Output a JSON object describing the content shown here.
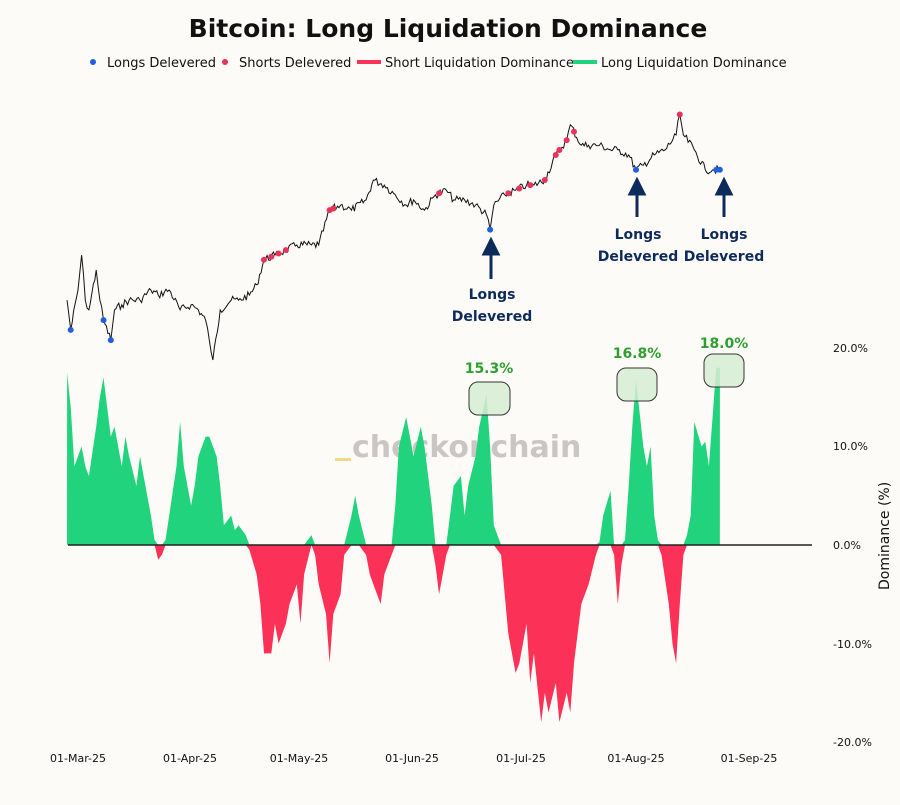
{
  "chart_data": {
    "type": "area",
    "title": "Bitcoin: Long Liquidation Dominance",
    "ylabel": "Dominance (%)",
    "ylim": [
      -20,
      20
    ],
    "y_ticks": [
      "20.0%",
      "10.0%",
      "0.0%",
      "-10.0%",
      "-20.0%"
    ],
    "y_tick_values": [
      20,
      10,
      0,
      -10,
      -20
    ],
    "x_ticks": [
      "01-Mar-25",
      "01-Apr-25",
      "01-May-25",
      "01-Jun-25",
      "01-Jul-25",
      "01-Aug-25",
      "01-Sep-25"
    ],
    "x_tick_dates": [
      "2025-03-01",
      "2025-04-01",
      "2025-05-01",
      "2025-06-01",
      "2025-07-01",
      "2025-08-01",
      "2025-09-01"
    ],
    "grid": false,
    "legend_position": "top",
    "legend": [
      {
        "label": "Longs Delevered",
        "kind": "dot",
        "color": "#1f5fe0"
      },
      {
        "label": "Shorts Delevered",
        "kind": "dot",
        "color": "#e8335a"
      },
      {
        "label": "Short Liquidation Dominance",
        "kind": "area",
        "color": "#fb3157"
      },
      {
        "label": "Long Liquidation Dominance",
        "kind": "area",
        "color": "#22d37e"
      }
    ],
    "watermark": "checkonchain",
    "dominance": [
      [
        "2025-02-26",
        17.5
      ],
      [
        "2025-02-27",
        14
      ],
      [
        "2025-02-28",
        8
      ],
      [
        "2025-03-02",
        10
      ],
      [
        "2025-03-03",
        8
      ],
      [
        "2025-03-04",
        7
      ],
      [
        "2025-03-06",
        12
      ],
      [
        "2025-03-07",
        15
      ],
      [
        "2025-03-08",
        17
      ],
      [
        "2025-03-10",
        11
      ],
      [
        "2025-03-11",
        12
      ],
      [
        "2025-03-13",
        8
      ],
      [
        "2025-03-14",
        11
      ],
      [
        "2025-03-15",
        9
      ],
      [
        "2025-03-17",
        6
      ],
      [
        "2025-03-18",
        9
      ],
      [
        "2025-03-19",
        7
      ],
      [
        "2025-03-21",
        3
      ],
      [
        "2025-03-22",
        0.5
      ],
      [
        "2025-03-23",
        -1.5
      ],
      [
        "2025-03-24",
        -1
      ],
      [
        "2025-03-25",
        0.5
      ],
      [
        "2025-03-26",
        3
      ],
      [
        "2025-03-28",
        8
      ],
      [
        "2025-03-29",
        12.5
      ],
      [
        "2025-03-30",
        8
      ],
      [
        "2025-04-01",
        4
      ],
      [
        "2025-04-02",
        6
      ],
      [
        "2025-04-03",
        9
      ],
      [
        "2025-04-05",
        11
      ],
      [
        "2025-04-06",
        11
      ],
      [
        "2025-04-08",
        9
      ],
      [
        "2025-04-09",
        6
      ],
      [
        "2025-04-10",
        2
      ],
      [
        "2025-04-12",
        3
      ],
      [
        "2025-04-13",
        1.5
      ],
      [
        "2025-04-14",
        2
      ],
      [
        "2025-04-16",
        1
      ],
      [
        "2025-04-17",
        -0.5
      ],
      [
        "2025-04-19",
        -3
      ],
      [
        "2025-04-20",
        -6
      ],
      [
        "2025-04-21",
        -11
      ],
      [
        "2025-04-23",
        -11
      ],
      [
        "2025-04-24",
        -8
      ],
      [
        "2025-04-25",
        -10
      ],
      [
        "2025-04-27",
        -8
      ],
      [
        "2025-04-28",
        -6
      ],
      [
        "2025-04-30",
        -4
      ],
      [
        "2025-05-01",
        -8
      ],
      [
        "2025-05-02",
        -3
      ],
      [
        "2025-05-04",
        1
      ],
      [
        "2025-05-05",
        -1
      ],
      [
        "2025-05-06",
        -4
      ],
      [
        "2025-05-08",
        -7
      ],
      [
        "2025-05-09",
        -12
      ],
      [
        "2025-05-10",
        -7
      ],
      [
        "2025-05-12",
        -5
      ],
      [
        "2025-05-13",
        -1
      ],
      [
        "2025-05-15",
        3
      ],
      [
        "2025-05-16",
        5
      ],
      [
        "2025-05-17",
        3
      ],
      [
        "2025-05-19",
        -1
      ],
      [
        "2025-05-20",
        -3
      ],
      [
        "2025-05-21",
        -4
      ],
      [
        "2025-05-23",
        -6
      ],
      [
        "2025-05-24",
        -3
      ],
      [
        "2025-05-26",
        -1
      ],
      [
        "2025-05-27",
        4
      ],
      [
        "2025-05-28",
        10
      ],
      [
        "2025-05-30",
        13
      ],
      [
        "2025-05-31",
        11
      ],
      [
        "2025-06-01",
        9
      ],
      [
        "2025-06-03",
        12
      ],
      [
        "2025-06-04",
        10
      ],
      [
        "2025-06-06",
        4
      ],
      [
        "2025-06-07",
        -2
      ],
      [
        "2025-06-08",
        -5
      ],
      [
        "2025-06-10",
        -1
      ],
      [
        "2025-06-11",
        3
      ],
      [
        "2025-06-12",
        6
      ],
      [
        "2025-06-14",
        7
      ],
      [
        "2025-06-15",
        3
      ],
      [
        "2025-06-16",
        6
      ],
      [
        "2025-06-18",
        9
      ],
      [
        "2025-06-19",
        12
      ],
      [
        "2025-06-21",
        15.3
      ],
      [
        "2025-06-22",
        10
      ],
      [
        "2025-06-23",
        2
      ],
      [
        "2025-06-25",
        -1
      ],
      [
        "2025-06-26",
        -5
      ],
      [
        "2025-06-27",
        -9
      ],
      [
        "2025-06-29",
        -13
      ],
      [
        "2025-06-30",
        -12
      ],
      [
        "2025-07-02",
        -8
      ],
      [
        "2025-07-03",
        -14
      ],
      [
        "2025-07-04",
        -11
      ],
      [
        "2025-07-06",
        -18
      ],
      [
        "2025-07-07",
        -15
      ],
      [
        "2025-07-08",
        -17
      ],
      [
        "2025-07-10",
        -14
      ],
      [
        "2025-07-11",
        -18
      ],
      [
        "2025-07-13",
        -15
      ],
      [
        "2025-07-14",
        -17
      ],
      [
        "2025-07-15",
        -12
      ],
      [
        "2025-07-17",
        -6
      ],
      [
        "2025-07-18",
        -5
      ],
      [
        "2025-07-19",
        -4
      ],
      [
        "2025-07-21",
        -1
      ],
      [
        "2025-07-22",
        0.3
      ],
      [
        "2025-07-23",
        3
      ],
      [
        "2025-07-25",
        5.5
      ],
      [
        "2025-07-26",
        -1
      ],
      [
        "2025-07-27",
        -6
      ],
      [
        "2025-07-28",
        -2
      ],
      [
        "2025-07-29",
        0.5
      ],
      [
        "2025-07-30",
        6
      ],
      [
        "2025-07-31",
        12
      ],
      [
        "2025-08-01",
        16.8
      ],
      [
        "2025-08-03",
        10
      ],
      [
        "2025-08-04",
        8
      ],
      [
        "2025-08-05",
        10
      ],
      [
        "2025-08-06",
        3
      ],
      [
        "2025-08-07",
        0.5
      ],
      [
        "2025-08-08",
        -1
      ],
      [
        "2025-08-10",
        -6
      ],
      [
        "2025-08-11",
        -10
      ],
      [
        "2025-08-12",
        -12
      ],
      [
        "2025-08-13",
        -6
      ],
      [
        "2025-08-14",
        -1
      ],
      [
        "2025-08-15",
        1
      ],
      [
        "2025-08-16",
        3
      ],
      [
        "2025-08-17",
        12.5
      ],
      [
        "2025-08-19",
        10
      ],
      [
        "2025-08-20",
        10.5
      ],
      [
        "2025-08-21",
        8
      ],
      [
        "2025-08-22",
        13
      ],
      [
        "2025-08-23",
        18
      ],
      [
        "2025-08-24",
        18
      ]
    ],
    "price": [
      [
        "2025-02-26",
        87.7
      ],
      [
        "2025-02-27",
        81.9
      ],
      [
        "2025-03-01",
        89.7
      ],
      [
        "2025-03-02",
        96.5
      ],
      [
        "2025-03-03",
        87.7
      ],
      [
        "2025-03-04",
        85.8
      ],
      [
        "2025-03-06",
        93.6
      ],
      [
        "2025-03-07",
        87.7
      ],
      [
        "2025-03-08",
        83.8
      ],
      [
        "2025-03-10",
        79.9
      ],
      [
        "2025-03-11",
        85.8
      ],
      [
        "2025-03-13",
        86.8
      ],
      [
        "2025-03-15",
        87.7
      ],
      [
        "2025-03-18",
        87.7
      ],
      [
        "2025-03-21",
        89.7
      ],
      [
        "2025-03-23",
        88.7
      ],
      [
        "2025-03-26",
        89.7
      ],
      [
        "2025-03-29",
        85.8
      ],
      [
        "2025-04-01",
        86.8
      ],
      [
        "2025-04-03",
        85.8
      ],
      [
        "2025-04-05",
        83.8
      ],
      [
        "2025-04-06",
        79.9
      ],
      [
        "2025-04-07",
        76.0
      ],
      [
        "2025-04-09",
        85.8
      ],
      [
        "2025-04-12",
        87.7
      ],
      [
        "2025-04-14",
        87.7
      ],
      [
        "2025-04-17",
        88.7
      ],
      [
        "2025-04-19",
        90.7
      ],
      [
        "2025-04-21",
        95.6
      ],
      [
        "2025-04-24",
        96.5
      ],
      [
        "2025-04-27",
        97.5
      ],
      [
        "2025-04-30",
        98.5
      ],
      [
        "2025-05-04",
        98.5
      ],
      [
        "2025-05-06",
        98.5
      ],
      [
        "2025-05-09",
        105.3
      ],
      [
        "2025-05-12",
        106.3
      ],
      [
        "2025-05-15",
        105.3
      ],
      [
        "2025-05-19",
        107.3
      ],
      [
        "2025-05-21",
        111.2
      ],
      [
        "2025-05-24",
        110.2
      ],
      [
        "2025-05-27",
        108.3
      ],
      [
        "2025-05-30",
        106.3
      ],
      [
        "2025-06-01",
        107.3
      ],
      [
        "2025-06-04",
        105.3
      ],
      [
        "2025-06-07",
        108.3
      ],
      [
        "2025-06-10",
        109.2
      ],
      [
        "2025-06-12",
        107.3
      ],
      [
        "2025-06-15",
        107.3
      ],
      [
        "2025-06-18",
        106.3
      ],
      [
        "2025-06-21",
        104.4
      ],
      [
        "2025-06-22",
        101.5
      ],
      [
        "2025-06-23",
        106.3
      ],
      [
        "2025-06-26",
        108.3
      ],
      [
        "2025-06-29",
        109.2
      ],
      [
        "2025-07-02",
        110.2
      ],
      [
        "2025-07-04",
        110.2
      ],
      [
        "2025-07-07",
        111.2
      ],
      [
        "2025-07-10",
        116.1
      ],
      [
        "2025-07-13",
        119.0
      ],
      [
        "2025-07-14",
        122.0
      ],
      [
        "2025-07-17",
        118.0
      ],
      [
        "2025-07-19",
        118.0
      ],
      [
        "2025-07-22",
        118.0
      ],
      [
        "2025-07-25",
        117.1
      ],
      [
        "2025-07-27",
        117.1
      ],
      [
        "2025-07-30",
        116.1
      ],
      [
        "2025-08-01",
        113.2
      ],
      [
        "2025-08-03",
        114.1
      ],
      [
        "2025-08-06",
        116.1
      ],
      [
        "2025-08-09",
        117.1
      ],
      [
        "2025-08-12",
        120.0
      ],
      [
        "2025-08-13",
        124.0
      ],
      [
        "2025-08-14",
        120.0
      ],
      [
        "2025-08-17",
        117.1
      ],
      [
        "2025-08-20",
        113.2
      ],
      [
        "2025-08-22",
        113.2
      ],
      [
        "2025-08-24",
        113.2
      ]
    ],
    "longs_delevered_dates": [
      "2025-02-27",
      "2025-03-08",
      "2025-03-10",
      "2025-06-22",
      "2025-08-01",
      "2025-08-23",
      "2025-08-24"
    ],
    "shorts_delevered_dates": [
      "2025-04-21",
      "2025-04-23",
      "2025-04-25",
      "2025-04-27",
      "2025-05-09",
      "2025-05-10",
      "2025-06-08",
      "2025-06-27",
      "2025-06-30",
      "2025-07-03",
      "2025-07-07",
      "2025-07-10",
      "2025-07-11",
      "2025-07-13",
      "2025-07-15",
      "2025-08-13"
    ],
    "annotations": [
      {
        "date": "2025-06-21",
        "value": 15.3,
        "label": "15.3%",
        "note_line1": "Longs",
        "note_line2": "Delevered"
      },
      {
        "date": "2025-08-01",
        "value": 16.8,
        "label": "16.8%",
        "note_line1": "Longs",
        "note_line2": "Delevered"
      },
      {
        "date": "2025-08-24",
        "value": 18.0,
        "label": "18.0%",
        "note_line1": "Longs",
        "note_line2": "Delevered"
      }
    ]
  }
}
